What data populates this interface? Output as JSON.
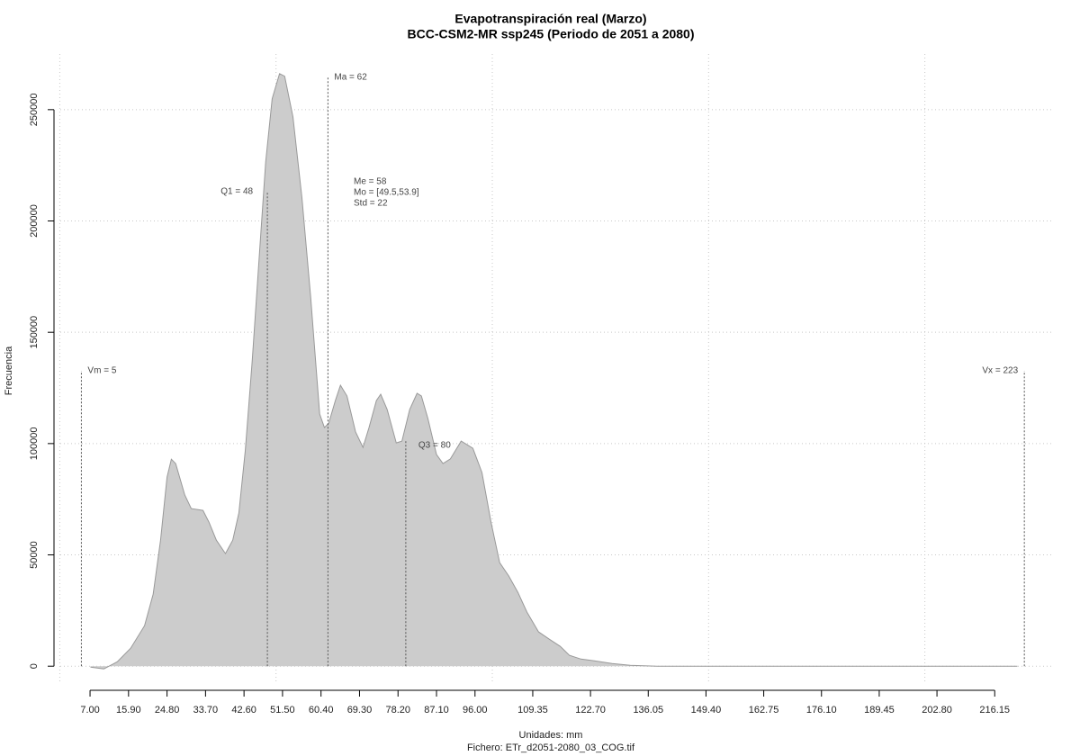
{
  "chart_data": {
    "type": "area",
    "title": "Evapotranspiración real (Marzo)",
    "subtitle": "BCC-CSM2-MR ssp245 (Periodo de 2051 a 2080)",
    "x_label": "Unidades: mm",
    "caption": "Fichero: ETr_d2051-2080_03_COG.tif",
    "y_label": "Frecuencia",
    "color": "#cccccc",
    "line_color": "#999999",
    "x": [
      7.1,
      10.2,
      13.3,
      16.4,
      19.6,
      21.6,
      23.3,
      24.8,
      25.8,
      26.8,
      28.9,
      30.4,
      33.1,
      34.5,
      36.2,
      38.3,
      40.0,
      41.4,
      42.9,
      44.5,
      46.2,
      47.6,
      49.1,
      50.8,
      52.0,
      53.9,
      56.0,
      58.0,
      60.1,
      61.2,
      62.2,
      63.7,
      64.9,
      66.4,
      68.4,
      70.1,
      71.5,
      73.2,
      74.2,
      75.7,
      77.8,
      79.1,
      80.9,
      82.6,
      83.6,
      85.1,
      87.1,
      88.6,
      90.3,
      92.8,
      95.5,
      97.6,
      99.7,
      101.7,
      103.8,
      105.9,
      108.0,
      110.7,
      113.2,
      115.7,
      117.8,
      120.5,
      123.6,
      127.7,
      131.9,
      138.1,
      221.4
    ],
    "values": [
      -400,
      -1200,
      2000,
      8100,
      18200,
      32400,
      56600,
      84900,
      93000,
      91000,
      76900,
      70800,
      70000,
      64700,
      56600,
      50600,
      56600,
      68800,
      97100,
      137500,
      186100,
      226500,
      254900,
      266200,
      265000,
      246800,
      210400,
      165800,
      113300,
      107200,
      109200,
      119300,
      126200,
      121400,
      105200,
      98300,
      107200,
      119300,
      122200,
      115300,
      100300,
      101100,
      115300,
      122600,
      121400,
      111300,
      95100,
      91000,
      93100,
      101100,
      97900,
      87000,
      64700,
      46500,
      40500,
      33200,
      24300,
      15400,
      12100,
      8900,
      4900,
      3200,
      2400,
      1200,
      400,
      0,
      0
    ],
    "xlim": [
      -0.5,
      229
    ],
    "ylim": [
      -8000,
      275000
    ],
    "xticks": [
      {
        "value": 7,
        "label": "7.00"
      },
      {
        "value": 15.9,
        "label": "15.90"
      },
      {
        "value": 24.8,
        "label": "24.80"
      },
      {
        "value": 33.7,
        "label": "33.70"
      },
      {
        "value": 42.6,
        "label": "42.60"
      },
      {
        "value": 51.5,
        "label": "51.50"
      },
      {
        "value": 60.4,
        "label": "60.40"
      },
      {
        "value": 69.3,
        "label": "69.30"
      },
      {
        "value": 78.2,
        "label": "78.20"
      },
      {
        "value": 87.1,
        "label": "87.10"
      },
      {
        "value": 96,
        "label": "96.00"
      },
      {
        "value": 109.35,
        "label": "109.35"
      },
      {
        "value": 122.7,
        "label": "122.70"
      },
      {
        "value": 136.05,
        "label": "136.05"
      },
      {
        "value": 149.4,
        "label": "149.40"
      },
      {
        "value": 162.75,
        "label": "162.75"
      },
      {
        "value": 176.1,
        "label": "176.10"
      },
      {
        "value": 189.45,
        "label": "189.45"
      },
      {
        "value": 202.8,
        "label": "202.80"
      },
      {
        "value": 216.15,
        "label": "216.15"
      }
    ],
    "yticks": [
      0,
      50000,
      100000,
      150000,
      200000,
      250000
    ],
    "xgrid": [
      0,
      50,
      100,
      150,
      200
    ],
    "grid": true,
    "annotations": [
      {
        "text": "Vm = 5",
        "x": 5
      },
      {
        "text": "Q1 = 48",
        "x": 48
      },
      {
        "text": "Ma = 62",
        "x": 62
      },
      {
        "text": "Q3 = 80",
        "x": 80
      },
      {
        "text": "Vx = 223",
        "x": 223
      }
    ],
    "stats": [
      "Me = 58",
      "Mo = [49.5,53.9]",
      "Std = 22"
    ]
  }
}
